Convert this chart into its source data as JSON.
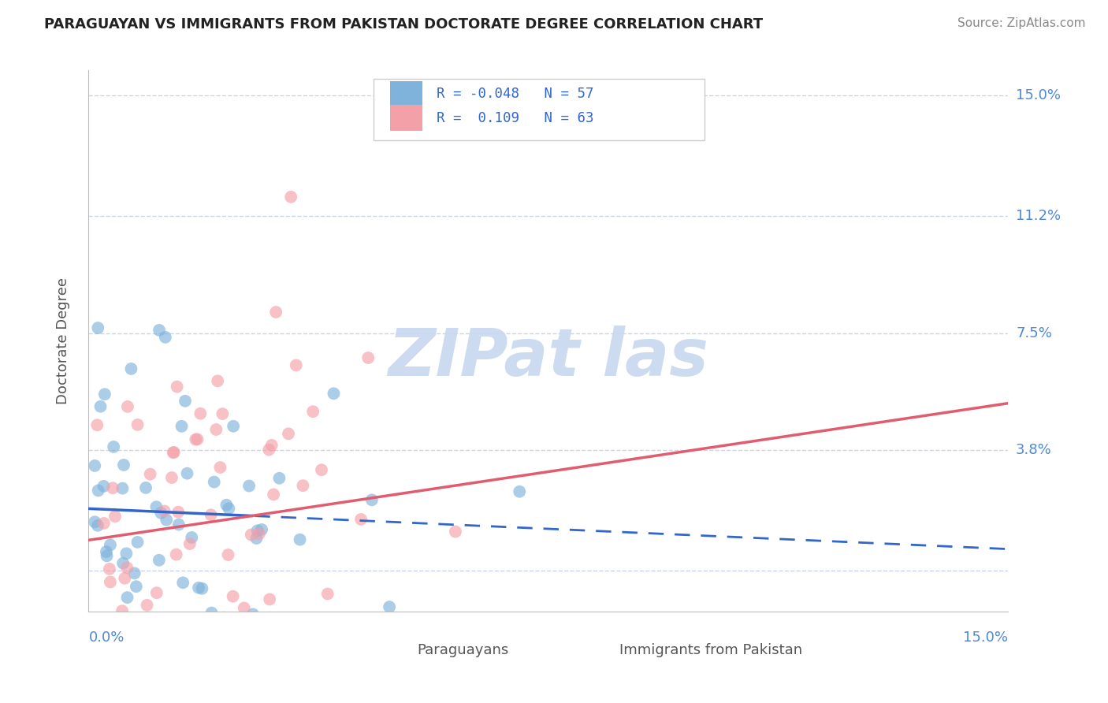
{
  "title": "PARAGUAYAN VS IMMIGRANTS FROM PAKISTAN DOCTORATE DEGREE CORRELATION CHART",
  "source": "Source: ZipAtlas.com",
  "ylabel": "Doctorate Degree",
  "R_blue": -0.048,
  "N_blue": 57,
  "R_pink": 0.109,
  "N_pink": 63,
  "blue_color": "#7fb3dc",
  "pink_color": "#f4a0a8",
  "trend_blue": "#3366cc",
  "trend_pink": "#e05c6e",
  "watermark_color": "#c8d8f0",
  "background": "#ffffff",
  "grid_color": "#c8d4e8",
  "legend_label_blue": "Paraguayans",
  "legend_label_pink": "Immigrants from Pakistan",
  "xlim": [
    0.0,
    0.15
  ],
  "ylim": [
    -0.013,
    0.158
  ],
  "yticks": [
    0.0,
    0.038,
    0.075,
    0.112,
    0.15
  ],
  "ytick_labels": [
    "",
    "3.8%",
    "7.5%",
    "11.2%",
    "15.0%"
  ],
  "title_fontsize": 13,
  "axis_label_fontsize": 13,
  "tick_fontsize": 13,
  "source_fontsize": 11
}
